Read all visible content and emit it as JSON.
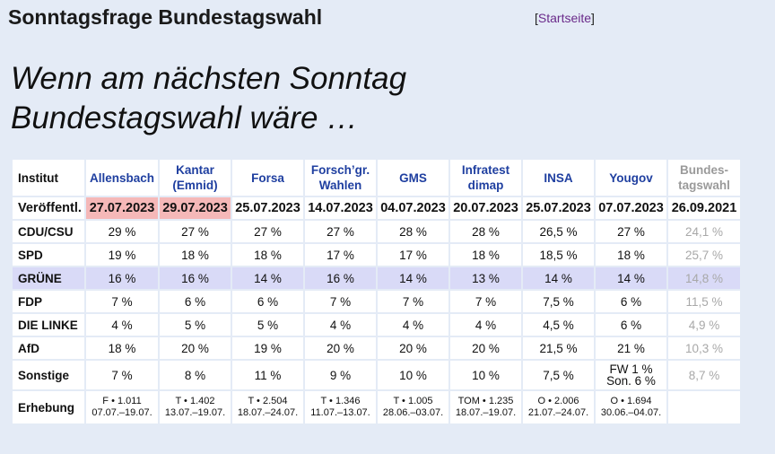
{
  "header": {
    "title": "Sonntagsfrage Bundestagswahl",
    "link_open": "[",
    "link_label": "Startseite",
    "link_close": "]"
  },
  "headline": {
    "line1": "Wenn am nächsten Sonntag",
    "line2": "Bundestagswahl wäre …"
  },
  "table": {
    "corner": "Institut",
    "institutes": [
      {
        "l1": "Allensbach",
        "l2": ""
      },
      {
        "l1": "Kantar",
        "l2": "(Emnid)"
      },
      {
        "l1": "Forsa",
        "l2": ""
      },
      {
        "l1": "Forsch’gr.",
        "l2": "Wahlen"
      },
      {
        "l1": "GMS",
        "l2": ""
      },
      {
        "l1": "Infratest",
        "l2": "dimap"
      },
      {
        "l1": "INSA",
        "l2": ""
      },
      {
        "l1": "Yougov",
        "l2": ""
      }
    ],
    "result_col": {
      "l1": "Bundes-",
      "l2": "tagswahl"
    },
    "date_row": {
      "label": "Veröffentl.",
      "values": [
        "27.07.2023",
        "29.07.2023",
        "25.07.2023",
        "14.07.2023",
        "04.07.2023",
        "20.07.2023",
        "25.07.2023",
        "07.07.2023"
      ],
      "result": "26.09.2021"
    },
    "parties": [
      {
        "label": "CDU/CSU",
        "values": [
          "29 %",
          "27 %",
          "27 %",
          "27 %",
          "28 %",
          "28 %",
          "26,5 %",
          "27 %"
        ],
        "result": "24,1 %"
      },
      {
        "label": "SPD",
        "values": [
          "19 %",
          "18 %",
          "18 %",
          "17 %",
          "17 %",
          "18 %",
          "18,5 %",
          "18 %"
        ],
        "result": "25,7 %"
      },
      {
        "label": "GRÜNE",
        "values": [
          "16 %",
          "16 %",
          "14 %",
          "16 %",
          "14 %",
          "13 %",
          "14 %",
          "14 %"
        ],
        "result": "14,8 %"
      },
      {
        "label": "FDP",
        "values": [
          "7 %",
          "6 %",
          "6 %",
          "7 %",
          "7 %",
          "7 %",
          "7,5 %",
          "6 %"
        ],
        "result": "11,5 %"
      },
      {
        "label": "DIE LINKE",
        "values": [
          "4 %",
          "5 %",
          "5 %",
          "4 %",
          "4 %",
          "4 %",
          "4,5 %",
          "6 %"
        ],
        "result": "4,9 %"
      },
      {
        "label": "AfD",
        "values": [
          "18 %",
          "20 %",
          "19 %",
          "20 %",
          "20 %",
          "20 %",
          "21,5 %",
          "21 %"
        ],
        "result": "10,3 %"
      }
    ],
    "sonstige": {
      "label": "Sonstige",
      "values": [
        "7 %",
        "8 %",
        "11 %",
        "9 %",
        "10 %",
        "10 %",
        "7,5 %"
      ],
      "yougov_l1": "FW 1 %",
      "yougov_l2": "Son. 6 %",
      "result": "8,7 %"
    },
    "erhebung": {
      "label": "Erhebung",
      "cells": [
        {
          "l1": "F • 1.011",
          "l2": "07.07.–19.07."
        },
        {
          "l1": "T • 1.402",
          "l2": "13.07.–19.07."
        },
        {
          "l1": "T • 2.504",
          "l2": "18.07.–24.07."
        },
        {
          "l1": "T • 1.346",
          "l2": "11.07.–13.07."
        },
        {
          "l1": "T • 1.005",
          "l2": "28.06.–03.07."
        },
        {
          "l1": "TOM • 1.235",
          "l2": "18.07.–19.07."
        },
        {
          "l1": "O • 2.006",
          "l2": "21.07.–24.07."
        },
        {
          "l1": "O • 1.694",
          "l2": "30.06.–04.07."
        }
      ]
    }
  },
  "colors": {
    "highlight": "#f5b8b8",
    "green_row": "#d9daf7",
    "institute_link": "#1f3fa0"
  }
}
